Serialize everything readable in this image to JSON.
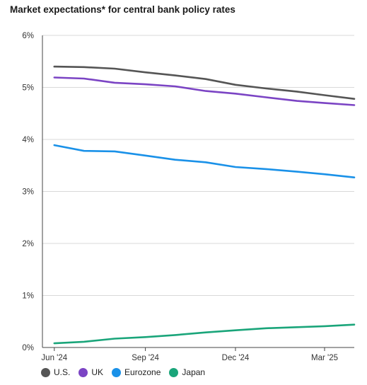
{
  "title": "Market expectations* for central bank policy rates",
  "chart_data": {
    "type": "line",
    "title": "Market expectations* for central bank policy rates",
    "xlabel": "",
    "ylabel": "",
    "ylim": [
      0,
      6
    ],
    "yticks": [
      0,
      1,
      2,
      3,
      4,
      5,
      6
    ],
    "ytick_labels": [
      "0%",
      "1%",
      "2%",
      "3%",
      "4%",
      "5%",
      "6%"
    ],
    "x_range": [
      "2024-05-20",
      "2025-03-31"
    ],
    "xticks": [
      "2024-06-01",
      "2024-09-01",
      "2024-12-01",
      "2025-03-01"
    ],
    "xtick_labels": [
      "Jun '24",
      "Sep '24",
      "Dec '24",
      "Mar '25"
    ],
    "x": [
      "2024-06-01",
      "2024-07-01",
      "2024-08-01",
      "2024-09-01",
      "2024-10-01",
      "2024-11-01",
      "2024-12-01",
      "2025-01-01",
      "2025-02-01",
      "2025-03-01",
      "2025-03-31"
    ],
    "grid": true,
    "legend_position": "bottom-left",
    "series": [
      {
        "name": "U.S.",
        "color": "#555555",
        "values": [
          5.4,
          5.39,
          5.36,
          5.29,
          5.23,
          5.16,
          5.05,
          4.98,
          4.92,
          4.85,
          4.78
        ]
      },
      {
        "name": "UK",
        "color": "#7b44c4",
        "values": [
          5.19,
          5.17,
          5.09,
          5.06,
          5.02,
          4.93,
          4.88,
          4.81,
          4.74,
          4.7,
          4.66
        ]
      },
      {
        "name": "Eurozone",
        "color": "#1a91e8",
        "values": [
          3.89,
          3.78,
          3.77,
          3.69,
          3.61,
          3.56,
          3.47,
          3.43,
          3.38,
          3.33,
          3.27
        ]
      },
      {
        "name": "Japan",
        "color": "#1aa57a",
        "values": [
          0.08,
          0.11,
          0.17,
          0.2,
          0.24,
          0.29,
          0.33,
          0.37,
          0.39,
          0.41,
          0.44
        ]
      }
    ]
  }
}
